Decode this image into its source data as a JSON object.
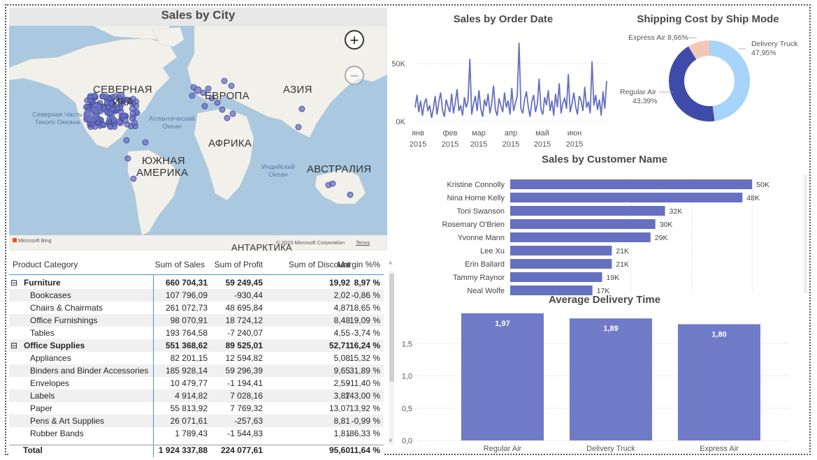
{
  "map": {
    "title": "Sales by City",
    "zoom_in": "+",
    "zoom_out": "−",
    "labels": [
      "СЕВЕРНАЯ",
      "ЕВРОПА",
      "АЗИЯ",
      "АФРИКА",
      "ЮЖНАЯ",
      "АМЕРИКА",
      "АВСТРАЛИЯ",
      "АНТАРКТИКА"
    ],
    "labels_partial": "ИКА",
    "oceans": [
      "Северная Часть Тихого Океана",
      "Атлантический Океан",
      "Индийский Океан"
    ],
    "brand": "Microsoft Bing",
    "copyright": "© 2023 Microsoft Corporation",
    "terms": "Terms"
  },
  "table": {
    "headers": [
      "Product Category",
      "Sum of Sales",
      "Sum of Profit",
      "Sum of Discount",
      "Margin %%"
    ],
    "rows": [
      {
        "name": "Furniture",
        "group": true,
        "sales": "660 704,31",
        "profit": "59 249,45",
        "discount": "19,92",
        "margin": "8,97 %"
      },
      {
        "name": "Bookcases",
        "group": false,
        "sales": "107 796,09",
        "profit": "-930,44",
        "discount": "2,02",
        "margin": "-0,86 %"
      },
      {
        "name": "Chairs & Chairmats",
        "group": false,
        "sales": "261 072,73",
        "profit": "48 695,84",
        "discount": "4,87",
        "margin": "18,65 %"
      },
      {
        "name": "Office Furnishings",
        "group": false,
        "sales": "98 070,91",
        "profit": "18 724,12",
        "discount": "8,48",
        "margin": "19,09 %"
      },
      {
        "name": "Tables",
        "group": false,
        "sales": "193 764,58",
        "profit": "-7 240,07",
        "discount": "4,55",
        "margin": "-3,74 %"
      },
      {
        "name": "Office Supplies",
        "group": true,
        "sales": "551 368,62",
        "profit": "89 525,01",
        "discount": "52,71",
        "margin": "16,24 %"
      },
      {
        "name": "Appliances",
        "group": false,
        "sales": "82 201,15",
        "profit": "12 594,82",
        "discount": "5,08",
        "margin": "15,32 %"
      },
      {
        "name": "Binders and Binder Accessories",
        "group": false,
        "sales": "185 928,14",
        "profit": "59 296,39",
        "discount": "9,65",
        "margin": "31,89 %"
      },
      {
        "name": "Envelopes",
        "group": false,
        "sales": "10 479,77",
        "profit": "-1 194,41",
        "discount": "2,59",
        "margin": "-11,40 %"
      },
      {
        "name": "Labels",
        "group": false,
        "sales": "4 914,82",
        "profit": "7 028,16",
        "discount": "3,87",
        "margin": "143,00 %"
      },
      {
        "name": "Paper",
        "group": false,
        "sales": "55 813,92",
        "profit": "7 769,32",
        "discount": "13,07",
        "margin": "13,92 %"
      },
      {
        "name": "Pens & Art Supplies",
        "group": false,
        "sales": "26 071,61",
        "profit": "-257,63",
        "discount": "8,81",
        "margin": "-0,99 %"
      },
      {
        "name": "Rubber Bands",
        "group": false,
        "sales": "1 789,43",
        "profit": "-1 544,83",
        "discount": "1,81",
        "margin": "-86,33 %"
      }
    ],
    "total": {
      "name": "Total",
      "sales": "1 924 337,88",
      "profit": "224 077,61",
      "discount": "95,60",
      "margin": "11,64 %"
    },
    "collapse_icon": "⊟"
  },
  "chart_data": [
    {
      "type": "line",
      "title": "Sales by Order Date",
      "x_ticks": [
        "янв 2015",
        "фев 2015",
        "мар 2015",
        "апр 2015",
        "май 2015",
        "июн 2015"
      ],
      "y_ticks": [
        "0K",
        "50K"
      ],
      "ylim": [
        0,
        70000
      ],
      "color": "#6670c0",
      "values": [
        12000,
        23000,
        8000,
        18000,
        5000,
        15000,
        20000,
        9000,
        14000,
        3000,
        11000,
        22000,
        6000,
        17000,
        25000,
        10000,
        4000,
        19000,
        13000,
        8000,
        24000,
        7000,
        16000,
        28000,
        9000,
        14000,
        5000,
        21000,
        12000,
        18000,
        54000,
        6000,
        15000,
        22000,
        9000,
        27000,
        11000,
        4000,
        19000,
        13000,
        24000,
        7000,
        16000,
        31000,
        10000,
        5000,
        20000,
        14000,
        8000,
        25000,
        12000,
        18000,
        6000,
        29000,
        9000,
        16000,
        22000,
        68000,
        11000,
        7000,
        19000,
        26000,
        13000,
        4000,
        17000,
        23000,
        8000,
        15000,
        37000,
        10000,
        6000,
        21000,
        14000,
        27000,
        9000,
        18000,
        5000,
        24000,
        12000,
        33000,
        7000,
        16000,
        20000,
        11000,
        41000,
        8000,
        15000,
        25000,
        13000,
        6000,
        22000,
        18000,
        9000,
        30000,
        12000,
        17000,
        7000,
        52000,
        14000,
        23000,
        10000,
        19000,
        5000,
        26000,
        11000,
        35000
      ]
    },
    {
      "type": "pie",
      "title": "Shipping Cost by Ship Mode",
      "slices": [
        {
          "label": "Delivery Truck",
          "value": 47.95,
          "text": "47,95%",
          "color": "#a6d4fa"
        },
        {
          "label": "Regular Air",
          "value": 43.39,
          "text": "43,39%",
          "color": "#3f4ba8"
        },
        {
          "label": "Express Air",
          "value": 8.66,
          "text": "8,66%",
          "color": "#f4c6b6"
        }
      ]
    },
    {
      "type": "bar",
      "orientation": "horizontal",
      "title": "Sales by Customer Name",
      "categories": [
        "Kristine Connolly",
        "Nina Horne Kelly",
        "Toni Swanson",
        "Rosemary O'Brien",
        "Yvonne Mann",
        "Lee Xu",
        "Erin Ballard",
        "Tammy Raynor",
        "Neal Wolfe"
      ],
      "values": [
        50000,
        48000,
        32000,
        30000,
        29000,
        21000,
        21000,
        19000,
        17000
      ],
      "labels": [
        "50K",
        "48K",
        "32K",
        "30K",
        "29K",
        "21K",
        "21K",
        "19K",
        "17K"
      ],
      "color": "#6670c0"
    },
    {
      "type": "bar",
      "title": "Average Delivery Time",
      "categories": [
        "Regular Air",
        "Delivery Truck",
        "Express Air"
      ],
      "values": [
        1.97,
        1.89,
        1.8
      ],
      "labels": [
        "1,97",
        "1,89",
        "1,80"
      ],
      "y_ticks": [
        "0,0",
        "0,5",
        "1,0",
        "1,5"
      ],
      "ylim": [
        0,
        2.0
      ],
      "color": "#6f7bc7"
    }
  ]
}
